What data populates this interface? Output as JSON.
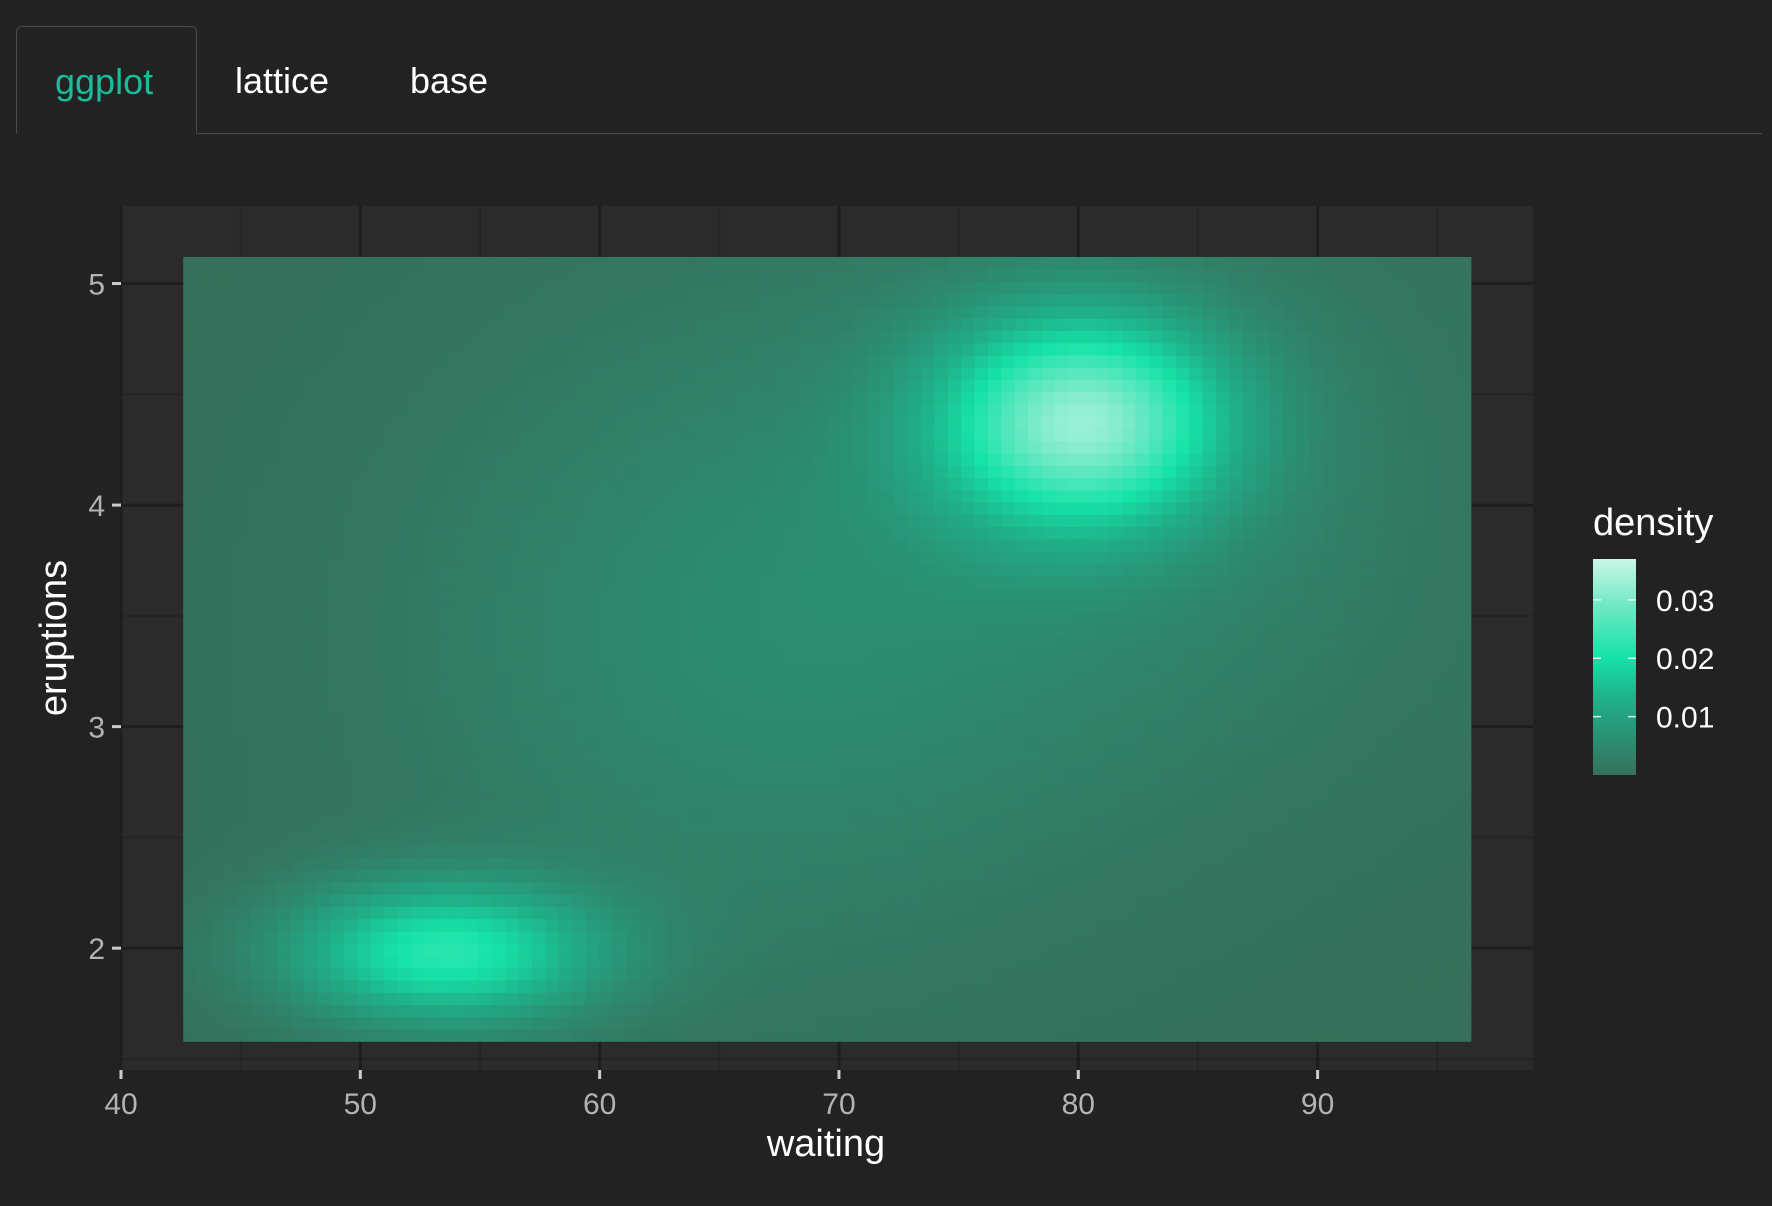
{
  "tabs": [
    {
      "label": "ggplot",
      "active": true
    },
    {
      "label": "lattice",
      "active": false
    },
    {
      "label": "base",
      "active": false
    }
  ],
  "colors": {
    "accent": "#1abc9c",
    "panel": "#2b2b2b",
    "grid": "#1e1e1e",
    "density_low": "#36705c",
    "density_mid": "#16e3a8",
    "density_high": "#c8f7e6"
  },
  "chart_data": {
    "type": "heatmap",
    "title": "",
    "xlabel": "waiting",
    "ylabel": "eruptions",
    "x_range": [
      40,
      99
    ],
    "y_range": [
      1.45,
      5.35
    ],
    "x_ticks": [
      40,
      50,
      60,
      70,
      80,
      90
    ],
    "y_ticks": [
      2,
      3,
      4,
      5
    ],
    "data_extent": {
      "x": [
        42.6,
        96.4
      ],
      "y": [
        1.58,
        5.12
      ]
    },
    "density_modes": [
      {
        "x": 80,
        "y": 4.4,
        "peak": 0.037
      },
      {
        "x": 54,
        "y": 2.0,
        "peak": 0.026
      }
    ],
    "legend": {
      "title": "density",
      "position": "right",
      "ticks": [
        0.03,
        0.02,
        0.01
      ],
      "tick_labels": [
        "0.03",
        "0.02",
        "0.01"
      ],
      "range": [
        0.0,
        0.037
      ]
    },
    "grid": true
  }
}
